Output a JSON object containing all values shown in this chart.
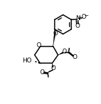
{
  "bg_color": "#ffffff",
  "lc": "#000000",
  "lw": 1.1,
  "fs": 6.5,
  "figsize": [
    1.46,
    1.5
  ],
  "dpi": 100,
  "xlim": [
    -1,
    11
  ],
  "ylim": [
    -1,
    11
  ]
}
